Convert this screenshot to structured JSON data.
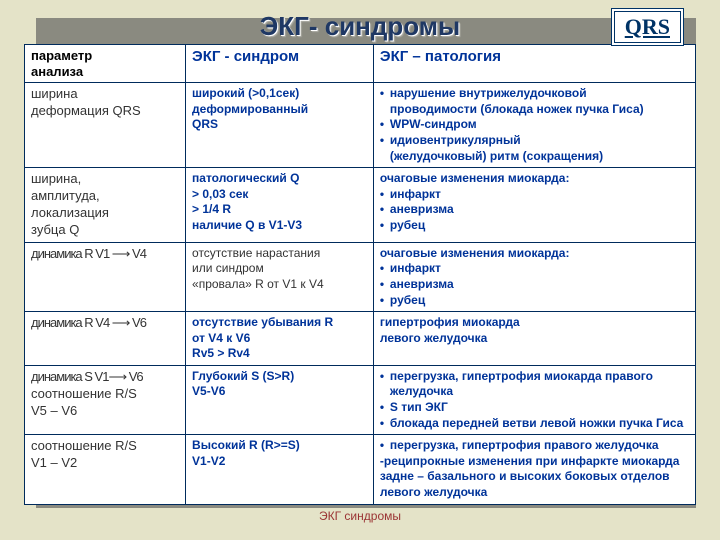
{
  "page": {
    "bg_color": "#e4e3c8",
    "shadow_color": "#8a8a80",
    "border_color": "#002b5c",
    "title_color": "#1f3864",
    "accent_color": "#003399",
    "footer_color": "#9a3333"
  },
  "title": "ЭКГ- синдромы",
  "badge": "QRS",
  "footer": "ЭКГ синдромы",
  "header": {
    "c1a": "параметр",
    "c1b": "анализа",
    "c2": "ЭКГ - синдром",
    "c3": "ЭКГ – патология"
  },
  "rows": {
    "r1": {
      "c1a": "ширина",
      "c1b": "деформация QRS",
      "c2a": "широкий (>0,1сек)",
      "c2b": "деформированный",
      "c2c": "QRS",
      "c3_b1": "нарушение внутрижелудочковой",
      "c3_b1b": " проводимости (блокада ножек пучка Гиса)",
      "c3_b2": "WPW-синдром",
      "c3_b3": "идиовентрикулярный",
      "c3_b3b": " (желудочковый)  ритм (сокращения)"
    },
    "r2": {
      "c1a": "ширина,",
      "c1b": "амплитуда,",
      "c1c": "локализация",
      "c1d": "зубца Q",
      "c2a": "патологический Q",
      "c2b": "> 0,03 сек",
      "c2c": "> 1/4 R",
      "c2d": "наличие Q в V1-V3",
      "c3_h": "очаговые изменения миокарда:",
      "c3_b1": " инфаркт",
      "c3_b2": " аневризма",
      "c3_b3": " рубец"
    },
    "r3": {
      "c1": "динамика R V1 ⟶ V4",
      "c2a": "отсутствие нарастания",
      "c2b": "или синдром",
      "c2c": "«провала» R от V1 к V4",
      "c3_h": "очаговые изменения миокарда:",
      "c3_b1": " инфаркт",
      "c3_b2": " аневризма",
      "c3_b3": " рубец"
    },
    "r4": {
      "c1": "динамика R V4 ⟶ V6",
      "c2a": "отсутствие убывания  R",
      "c2b": "от  V4  к V6",
      "c2c": "Rv5 > Rv4",
      "c3a": "гипертрофия  миокарда",
      "c3b": "левого  желудочка"
    },
    "r5": {
      "c1a": "динамика S V1⟶ V6",
      "c1b": "соотношение R/S",
      "c1c": "V5 – V6",
      "c2a": "Глубокий S (S>R)",
      "c2b": "V5-V6",
      "c3_b1": " перегрузка, гипертрофия миокарда правого",
      "c3_b1b": "   желудочка",
      "c3_b2": " S тип ЭКГ",
      "c3_b3": "блокада  передней ветви левой ножки пучка Гиса"
    },
    "r6": {
      "c1a": "соотношение R/S",
      "c1b": "V1 – V2",
      "c2a": "Высокий R (R>=S)",
      "c2b": "V1-V2",
      "c3_b1": "перегрузка, гипертрофия правого желудочка",
      "c3_d": "-реципрокные изменения при инфаркте миокарда",
      "c3_da": "  задне – базального и высоких боковых отделов",
      "c3_db": "  левого желудочка"
    }
  }
}
